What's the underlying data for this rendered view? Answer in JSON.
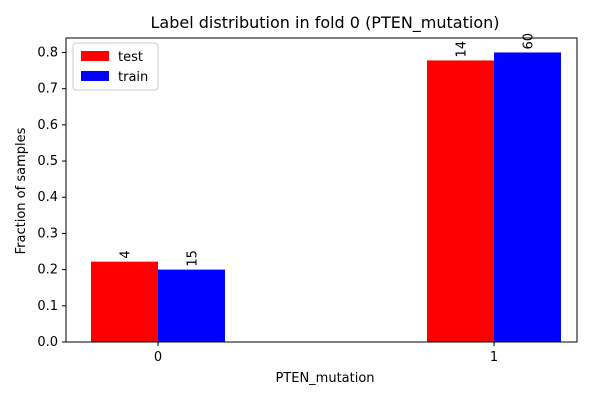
{
  "chart_data": {
    "type": "bar",
    "title": "Label distribution in fold 0 (PTEN_mutation)",
    "xlabel": "PTEN_mutation",
    "ylabel": "Fraction of samples",
    "categories": [
      "0",
      "1"
    ],
    "series": [
      {
        "name": "test",
        "color": "#ff0000",
        "values": [
          0.222,
          0.778
        ],
        "labels": [
          "4",
          "14"
        ]
      },
      {
        "name": "train",
        "color": "#0000ff",
        "values": [
          0.2,
          0.8
        ],
        "labels": [
          "15",
          "60"
        ]
      }
    ],
    "ylim": [
      0,
      0.84
    ],
    "yticks": [
      0.0,
      0.1,
      0.2,
      0.3,
      0.4,
      0.5,
      0.6,
      0.7,
      0.8
    ],
    "ytick_labels": [
      "0.0",
      "0.1",
      "0.2",
      "0.3",
      "0.4",
      "0.5",
      "0.6",
      "0.7",
      "0.8"
    ],
    "legend": "top-left",
    "grid": false
  }
}
